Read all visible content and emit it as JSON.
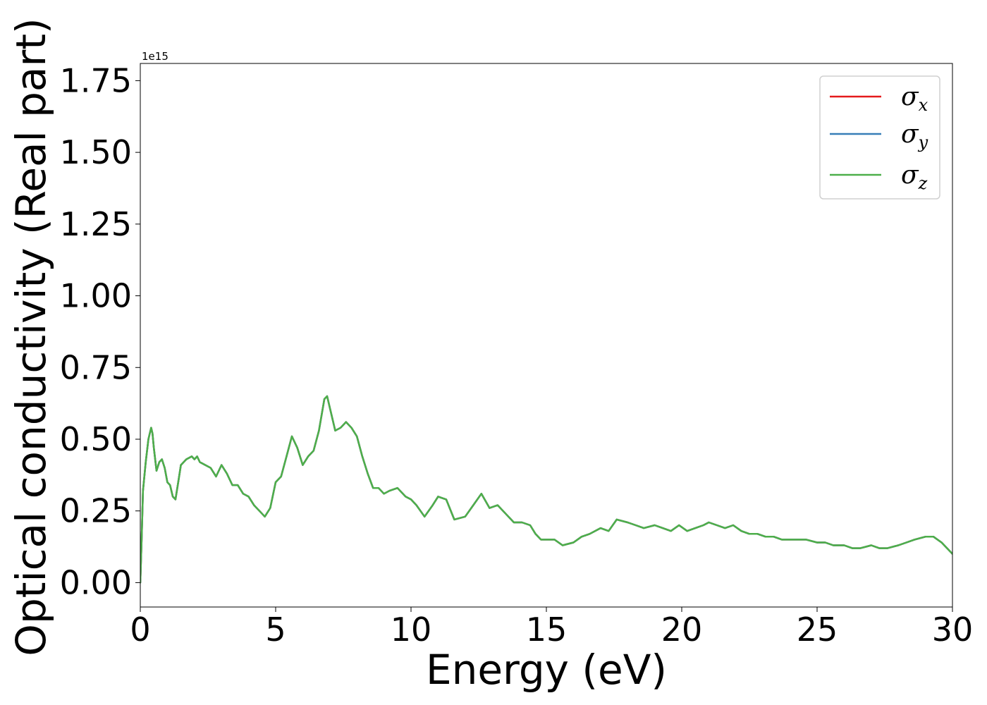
{
  "chart_data": {
    "type": "line",
    "title": "",
    "xlabel": "Energy (eV)",
    "ylabel": "Optical conductivity (Real part)",
    "y_offset_label": "1e15",
    "xlim": [
      0,
      30
    ],
    "ylim": [
      -0.085,
      1.81
    ],
    "xticks": [
      0,
      5,
      10,
      15,
      20,
      25,
      30
    ],
    "xtick_labels": [
      "0",
      "5",
      "10",
      "15",
      "20",
      "25",
      "30"
    ],
    "yticks": [
      0.0,
      0.25,
      0.5,
      0.75,
      1.0,
      1.25,
      1.5,
      1.75
    ],
    "ytick_labels": [
      "0.00",
      "0.25",
      "0.50",
      "0.75",
      "1.00",
      "1.25",
      "1.50",
      "1.75"
    ],
    "grid": false,
    "legend_position": "upper right",
    "series": [
      {
        "name": "σx",
        "symbol": "σ",
        "subscript": "x",
        "color": "#e41a1c",
        "x": [
          0,
          0.05,
          0.1,
          0.2,
          0.3,
          0.4,
          0.45,
          0.5,
          0.6,
          0.7,
          0.8,
          0.9,
          1.0,
          1.1,
          1.2,
          1.3,
          1.4,
          1.5,
          1.7,
          1.9,
          2.0,
          2.1,
          2.2,
          2.4,
          2.6,
          2.8,
          3.0,
          3.2,
          3.4,
          3.6,
          3.8,
          4.0,
          4.2,
          4.4,
          4.6,
          4.8,
          5.0,
          5.2,
          5.4,
          5.6,
          5.8,
          6.0,
          6.2,
          6.4,
          6.6,
          6.8,
          6.9,
          7.0,
          7.2,
          7.4,
          7.6,
          7.8,
          8.0,
          8.2,
          8.4,
          8.6,
          8.8,
          9.0,
          9.2,
          9.5,
          9.8,
          10.0,
          10.2,
          10.5,
          10.8,
          11.0,
          11.3,
          11.6,
          12.0,
          12.3,
          12.6,
          12.9,
          13.2,
          13.5,
          13.8,
          14.1,
          14.4,
          14.6,
          14.8,
          15.0,
          15.3,
          15.6,
          16.0,
          16.3,
          16.6,
          17.0,
          17.3,
          17.6,
          18.0,
          18.3,
          18.6,
          19.0,
          19.3,
          19.6,
          19.9,
          20.2,
          20.5,
          20.8,
          21.0,
          21.3,
          21.6,
          21.9,
          22.2,
          22.5,
          22.8,
          23.1,
          23.4,
          23.7,
          24.0,
          24.3,
          24.6,
          25.0,
          25.3,
          25.6,
          26.0,
          26.3,
          26.6,
          27.0,
          27.3,
          27.6,
          28.0,
          28.3,
          28.6,
          29.0,
          29.3,
          29.6,
          30.0
        ],
        "values": [
          0.0,
          0.15,
          0.32,
          0.42,
          0.5,
          0.54,
          0.52,
          0.47,
          0.39,
          0.42,
          0.43,
          0.4,
          0.35,
          0.34,
          0.3,
          0.29,
          0.35,
          0.41,
          0.43,
          0.44,
          0.43,
          0.44,
          0.42,
          0.41,
          0.4,
          0.37,
          0.41,
          0.38,
          0.34,
          0.34,
          0.31,
          0.3,
          0.27,
          0.25,
          0.23,
          0.26,
          0.35,
          0.37,
          0.44,
          0.51,
          0.47,
          0.41,
          0.44,
          0.46,
          0.53,
          0.64,
          0.65,
          0.61,
          0.53,
          0.54,
          0.56,
          0.54,
          0.51,
          0.44,
          0.38,
          0.33,
          0.33,
          0.31,
          0.32,
          0.33,
          0.3,
          0.29,
          0.27,
          0.23,
          0.27,
          0.3,
          0.29,
          0.22,
          0.23,
          0.27,
          0.31,
          0.26,
          0.27,
          0.24,
          0.21,
          0.21,
          0.2,
          0.17,
          0.15,
          0.15,
          0.15,
          0.13,
          0.14,
          0.16,
          0.17,
          0.19,
          0.18,
          0.22,
          0.21,
          0.2,
          0.19,
          0.2,
          0.19,
          0.18,
          0.2,
          0.18,
          0.19,
          0.2,
          0.21,
          0.2,
          0.19,
          0.2,
          0.18,
          0.17,
          0.17,
          0.16,
          0.16,
          0.15,
          0.15,
          0.15,
          0.15,
          0.14,
          0.14,
          0.13,
          0.13,
          0.12,
          0.12,
          0.13,
          0.12,
          0.12,
          0.13,
          0.14,
          0.15,
          0.16,
          0.16,
          0.14,
          0.1
        ]
      },
      {
        "name": "σy",
        "symbol": "σ",
        "subscript": "y",
        "color": "#377eb8",
        "x": [
          0,
          0.05,
          0.1,
          0.2,
          0.3,
          0.4,
          0.45,
          0.5,
          0.6,
          0.7,
          0.8,
          0.9,
          1.0,
          1.1,
          1.2,
          1.3,
          1.4,
          1.5,
          1.7,
          1.9,
          2.0,
          2.1,
          2.2,
          2.4,
          2.6,
          2.8,
          3.0,
          3.2,
          3.4,
          3.6,
          3.8,
          4.0,
          4.2,
          4.4,
          4.6,
          4.8,
          5.0,
          5.2,
          5.4,
          5.6,
          5.8,
          6.0,
          6.2,
          6.4,
          6.6,
          6.8,
          6.9,
          7.0,
          7.2,
          7.4,
          7.6,
          7.8,
          8.0,
          8.2,
          8.4,
          8.6,
          8.8,
          9.0,
          9.2,
          9.5,
          9.8,
          10.0,
          10.2,
          10.5,
          10.8,
          11.0,
          11.3,
          11.6,
          12.0,
          12.3,
          12.6,
          12.9,
          13.2,
          13.5,
          13.8,
          14.1,
          14.4,
          14.6,
          14.8,
          15.0,
          15.3,
          15.6,
          16.0,
          16.3,
          16.6,
          17.0,
          17.3,
          17.6,
          18.0,
          18.3,
          18.6,
          19.0,
          19.3,
          19.6,
          19.9,
          20.2,
          20.5,
          20.8,
          21.0,
          21.3,
          21.6,
          21.9,
          22.2,
          22.5,
          22.8,
          23.1,
          23.4,
          23.7,
          24.0,
          24.3,
          24.6,
          25.0,
          25.3,
          25.6,
          26.0,
          26.3,
          26.6,
          27.0,
          27.3,
          27.6,
          28.0,
          28.3,
          28.6,
          29.0,
          29.3,
          29.6,
          30.0
        ],
        "values": [
          0.0,
          0.15,
          0.32,
          0.42,
          0.5,
          0.54,
          0.52,
          0.47,
          0.39,
          0.42,
          0.43,
          0.4,
          0.35,
          0.34,
          0.3,
          0.29,
          0.35,
          0.41,
          0.43,
          0.44,
          0.43,
          0.44,
          0.42,
          0.41,
          0.4,
          0.37,
          0.41,
          0.38,
          0.34,
          0.34,
          0.31,
          0.3,
          0.27,
          0.25,
          0.23,
          0.26,
          0.35,
          0.37,
          0.44,
          0.51,
          0.47,
          0.41,
          0.44,
          0.46,
          0.53,
          0.64,
          0.65,
          0.61,
          0.53,
          0.54,
          0.56,
          0.54,
          0.51,
          0.44,
          0.38,
          0.33,
          0.33,
          0.31,
          0.32,
          0.33,
          0.3,
          0.29,
          0.27,
          0.23,
          0.27,
          0.3,
          0.29,
          0.22,
          0.23,
          0.27,
          0.31,
          0.26,
          0.27,
          0.24,
          0.21,
          0.21,
          0.2,
          0.17,
          0.15,
          0.15,
          0.15,
          0.13,
          0.14,
          0.16,
          0.17,
          0.19,
          0.18,
          0.22,
          0.21,
          0.2,
          0.19,
          0.2,
          0.19,
          0.18,
          0.2,
          0.18,
          0.19,
          0.2,
          0.21,
          0.2,
          0.19,
          0.2,
          0.18,
          0.17,
          0.17,
          0.16,
          0.16,
          0.15,
          0.15,
          0.15,
          0.15,
          0.14,
          0.14,
          0.13,
          0.13,
          0.12,
          0.12,
          0.13,
          0.12,
          0.12,
          0.13,
          0.14,
          0.15,
          0.16,
          0.16,
          0.14,
          0.1
        ]
      },
      {
        "name": "σz",
        "symbol": "σ",
        "subscript": "z",
        "color": "#4daf4a",
        "x": [
          0,
          0.05,
          0.1,
          0.2,
          0.3,
          0.4,
          0.45,
          0.5,
          0.6,
          0.7,
          0.8,
          0.9,
          1.0,
          1.1,
          1.2,
          1.3,
          1.4,
          1.5,
          1.7,
          1.9,
          2.0,
          2.1,
          2.2,
          2.4,
          2.6,
          2.8,
          3.0,
          3.2,
          3.4,
          3.6,
          3.8,
          4.0,
          4.2,
          4.4,
          4.6,
          4.8,
          5.0,
          5.2,
          5.4,
          5.6,
          5.8,
          6.0,
          6.2,
          6.4,
          6.6,
          6.8,
          6.9,
          7.0,
          7.2,
          7.4,
          7.6,
          7.8,
          8.0,
          8.2,
          8.4,
          8.6,
          8.8,
          9.0,
          9.2,
          9.5,
          9.8,
          10.0,
          10.2,
          10.5,
          10.8,
          11.0,
          11.3,
          11.6,
          12.0,
          12.3,
          12.6,
          12.9,
          13.2,
          13.5,
          13.8,
          14.1,
          14.4,
          14.6,
          14.8,
          15.0,
          15.3,
          15.6,
          16.0,
          16.3,
          16.6,
          17.0,
          17.3,
          17.6,
          18.0,
          18.3,
          18.6,
          19.0,
          19.3,
          19.6,
          19.9,
          20.2,
          20.5,
          20.8,
          21.0,
          21.3,
          21.6,
          21.9,
          22.2,
          22.5,
          22.8,
          23.1,
          23.4,
          23.7,
          24.0,
          24.3,
          24.6,
          25.0,
          25.3,
          25.6,
          26.0,
          26.3,
          26.6,
          27.0,
          27.3,
          27.6,
          28.0,
          28.3,
          28.6,
          29.0,
          29.3,
          29.6,
          30.0
        ],
        "values": [
          0.0,
          0.15,
          0.32,
          0.42,
          0.5,
          0.54,
          0.52,
          0.47,
          0.39,
          0.42,
          0.43,
          0.4,
          0.35,
          0.34,
          0.3,
          0.29,
          0.35,
          0.41,
          0.43,
          0.44,
          0.43,
          0.44,
          0.42,
          0.41,
          0.4,
          0.37,
          0.41,
          0.38,
          0.34,
          0.34,
          0.31,
          0.3,
          0.27,
          0.25,
          0.23,
          0.26,
          0.35,
          0.37,
          0.44,
          0.51,
          0.47,
          0.41,
          0.44,
          0.46,
          0.53,
          0.64,
          0.65,
          0.61,
          0.53,
          0.54,
          0.56,
          0.54,
          0.51,
          0.44,
          0.38,
          0.33,
          0.33,
          0.31,
          0.32,
          0.33,
          0.3,
          0.29,
          0.27,
          0.23,
          0.27,
          0.3,
          0.29,
          0.22,
          0.23,
          0.27,
          0.31,
          0.26,
          0.27,
          0.24,
          0.21,
          0.21,
          0.2,
          0.17,
          0.15,
          0.15,
          0.15,
          0.13,
          0.14,
          0.16,
          0.17,
          0.19,
          0.18,
          0.22,
          0.21,
          0.2,
          0.19,
          0.2,
          0.19,
          0.18,
          0.2,
          0.18,
          0.19,
          0.2,
          0.21,
          0.2,
          0.19,
          0.2,
          0.18,
          0.17,
          0.17,
          0.16,
          0.16,
          0.15,
          0.15,
          0.15,
          0.15,
          0.14,
          0.14,
          0.13,
          0.13,
          0.12,
          0.12,
          0.13,
          0.12,
          0.12,
          0.13,
          0.14,
          0.15,
          0.16,
          0.16,
          0.14,
          0.1
        ]
      }
    ]
  }
}
